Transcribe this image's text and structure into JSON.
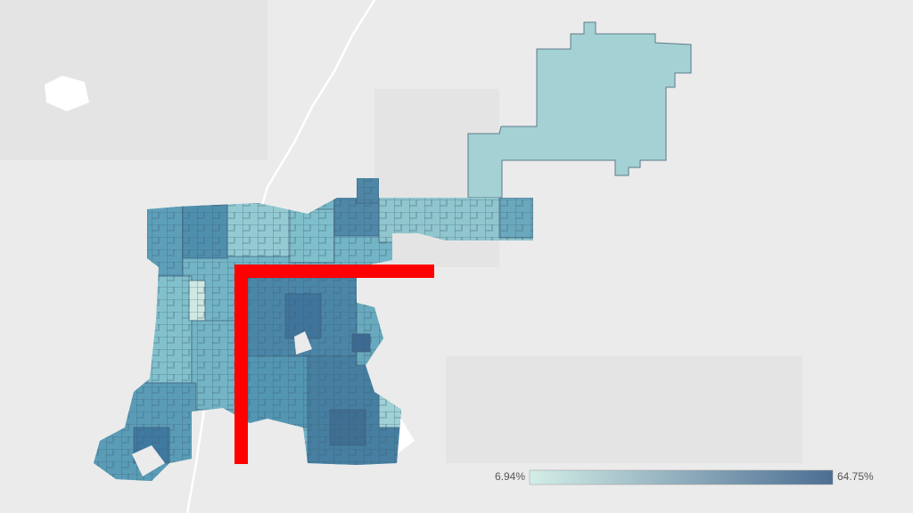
{
  "legend": {
    "min": {
      "value": 6.94,
      "label": "6.94%"
    },
    "max": {
      "value": 64.75,
      "label": "64.75%"
    },
    "colors": [
      "#d3ede7",
      "#4c6e92"
    ]
  }
}
